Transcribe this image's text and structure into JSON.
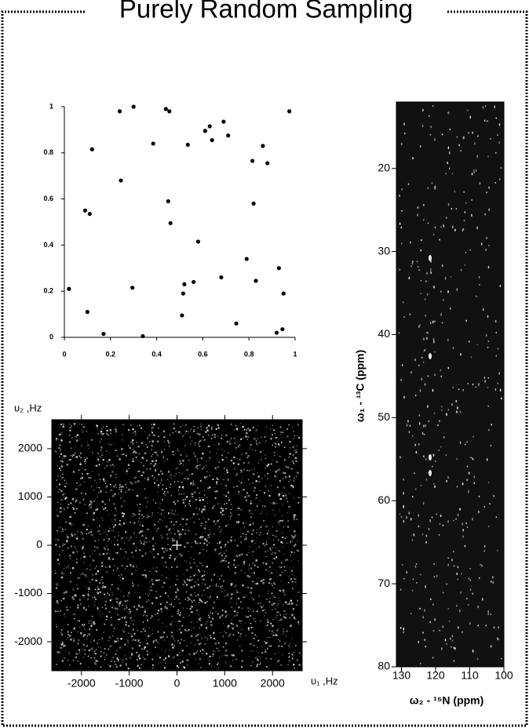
{
  "title": "Purely Random Sampling",
  "chart_data": [
    {
      "type": "scatter",
      "x": [
        0.02,
        0.09,
        0.1,
        0.11,
        0.12,
        0.17,
        0.24,
        0.245,
        0.295,
        0.3,
        0.34,
        0.385,
        0.44,
        0.45,
        0.455,
        0.46,
        0.51,
        0.515,
        0.52,
        0.535,
        0.56,
        0.58,
        0.61,
        0.63,
        0.64,
        0.68,
        0.69,
        0.71,
        0.745,
        0.79,
        0.815,
        0.82,
        0.83,
        0.86,
        0.88,
        0.92,
        0.93,
        0.945,
        0.95,
        0.975
      ],
      "values": [
        0.21,
        0.55,
        0.11,
        0.535,
        0.815,
        0.015,
        0.98,
        0.68,
        0.215,
        1.0,
        0.005,
        0.84,
        0.99,
        0.59,
        0.98,
        0.495,
        0.095,
        0.19,
        0.23,
        0.835,
        0.24,
        0.415,
        0.895,
        0.915,
        0.855,
        0.26,
        0.935,
        0.875,
        0.06,
        0.34,
        0.765,
        0.58,
        0.245,
        0.83,
        0.755,
        0.02,
        0.3,
        0.035,
        0.19,
        0.98
      ],
      "color": "#000000",
      "xlim": [
        0,
        1
      ],
      "ylim": [
        0,
        1
      ],
      "xticks": [
        0,
        0.2,
        0.4,
        0.6,
        0.8,
        1
      ],
      "yticks": [
        0,
        0.2,
        0.4,
        0.6,
        0.8,
        1
      ]
    },
    {
      "type": "image",
      "xlabel": "υ₁ ,Hz",
      "ylabel": "υ₂ ,Hz",
      "xlim": [
        -2620,
        2620
      ],
      "ylim": [
        -2600,
        2600
      ],
      "xticks": [
        -2000,
        -1000,
        0,
        1000,
        2000
      ],
      "yticks": [
        -2000,
        -1000,
        0,
        1000,
        2000
      ]
    },
    {
      "type": "image",
      "xlabel": "ω₂ - ¹⁵N  (ppm)",
      "ylabel": "ω₁ - ¹³C  (ppm)",
      "xlim": [
        131.5,
        100
      ],
      "ylim": [
        80,
        12
      ],
      "xticks": [
        130,
        120,
        110,
        100
      ],
      "yticks": [
        20,
        30,
        40,
        50,
        60,
        70,
        80
      ]
    }
  ]
}
